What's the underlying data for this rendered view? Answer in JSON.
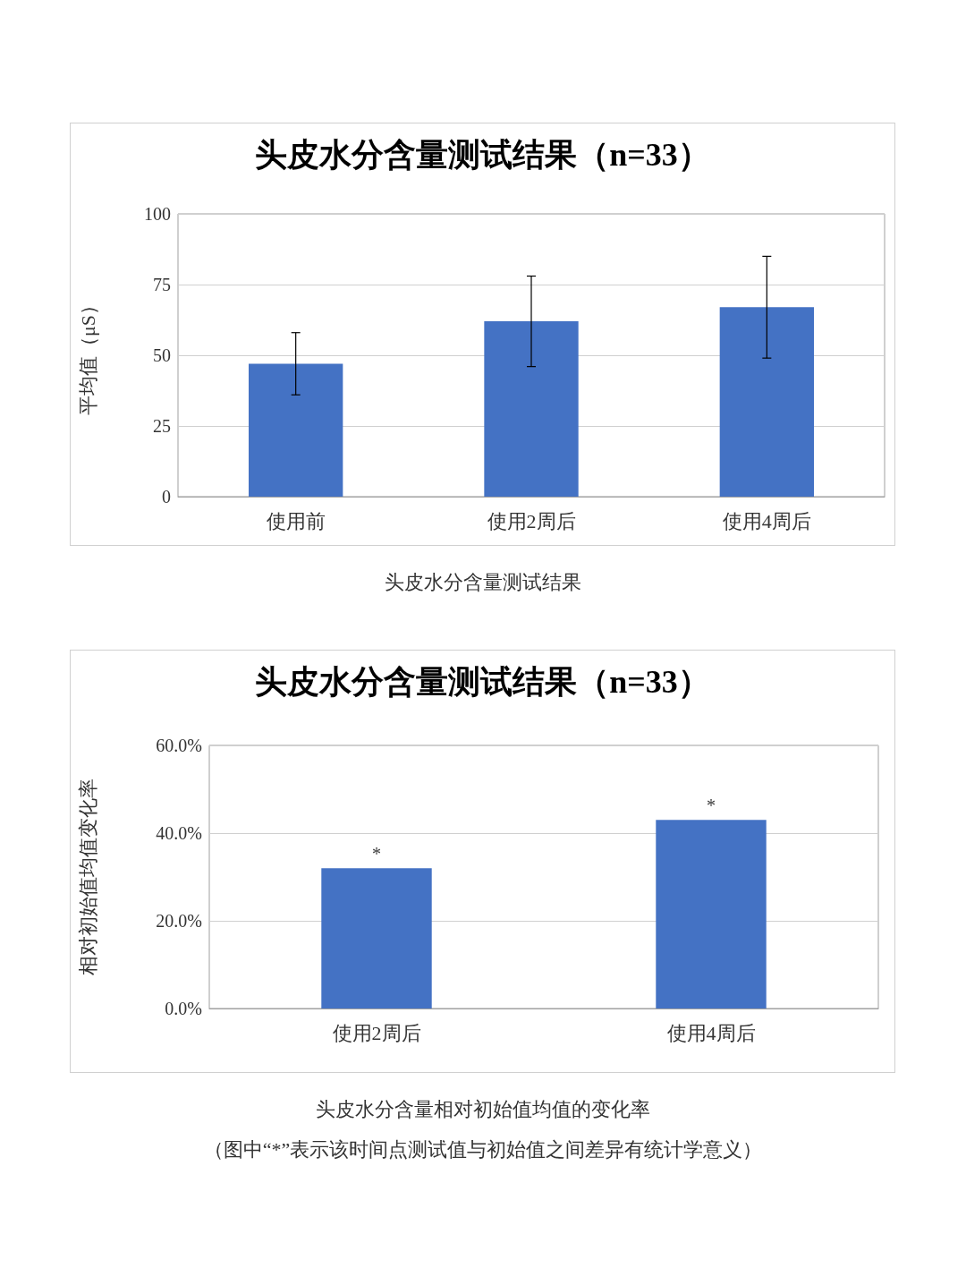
{
  "chart_data": [
    {
      "type": "bar",
      "title": "头皮水分含量测试结果（n=33）",
      "ylabel": "平均值（μS）",
      "categories": [
        "使用前",
        "使用2周后",
        "使用4周后"
      ],
      "values": [
        47,
        62,
        67
      ],
      "errors": [
        11,
        16,
        18
      ],
      "color": "#4472c4",
      "ylim": [
        0,
        100
      ],
      "yticks": [
        0,
        25,
        50,
        75,
        100
      ],
      "grid": "y",
      "annotations": [
        "头皮水分含量测试结果"
      ]
    },
    {
      "type": "bar",
      "title": "头皮水分含量测试结果（n=33）",
      "ylabel": "相对初始值均值变化率",
      "categories": [
        "使用2周后",
        "使用4周后"
      ],
      "values": [
        32,
        43
      ],
      "color": "#4472c4",
      "ylim": [
        0,
        60
      ],
      "yticks": [
        {
          "value": 0,
          "label": "0.0%"
        },
        {
          "value": 20,
          "label": "20.0%"
        },
        {
          "value": 40,
          "label": "40.0%"
        },
        {
          "value": 60,
          "label": "60.0%"
        }
      ],
      "grid": "y",
      "annotations": [
        {
          "text": "*",
          "x": "使用2周后",
          "y": 32
        },
        {
          "text": "*",
          "x": "使用4周后",
          "y": 43
        },
        "头皮水分含量相对初始值均值的变化率",
        "（图中“*”表示该时间点测试值与初始值之间差异有统计学意义）"
      ]
    }
  ]
}
